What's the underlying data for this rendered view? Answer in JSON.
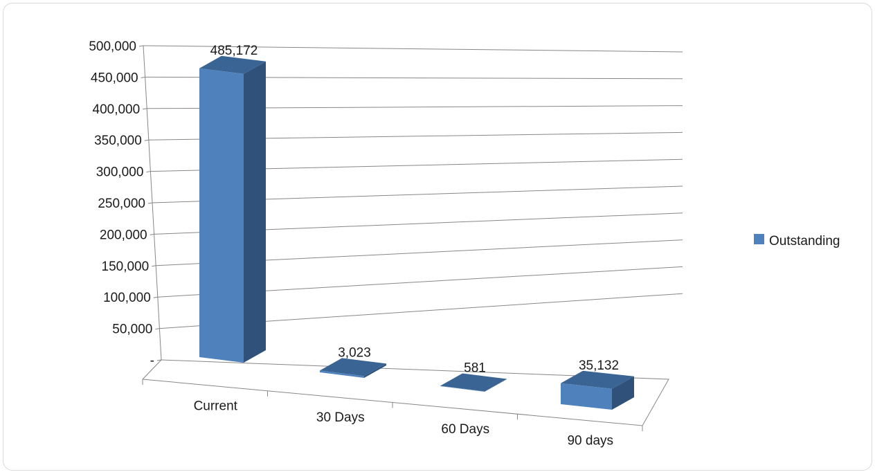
{
  "chart_data": {
    "type": "bar",
    "style": "3d-column",
    "categories": [
      "Current",
      "30 Days",
      "60 Days",
      "90 days"
    ],
    "series": [
      {
        "name": "Outstanding",
        "values": [
          485172,
          3023,
          581,
          35132
        ],
        "color": "#4F81BD"
      }
    ],
    "data_labels": [
      "485,172",
      "3,023",
      "581",
      "35,132"
    ],
    "y_ticks": [
      "-",
      "50,000",
      "100,000",
      "150,000",
      "200,000",
      "250,000",
      "300,000",
      "350,000",
      "400,000",
      "450,000",
      "500,000"
    ],
    "ylim": [
      0,
      500000
    ],
    "grid": true,
    "legend_position": "right",
    "title": "",
    "xlabel": "",
    "ylabel": ""
  }
}
